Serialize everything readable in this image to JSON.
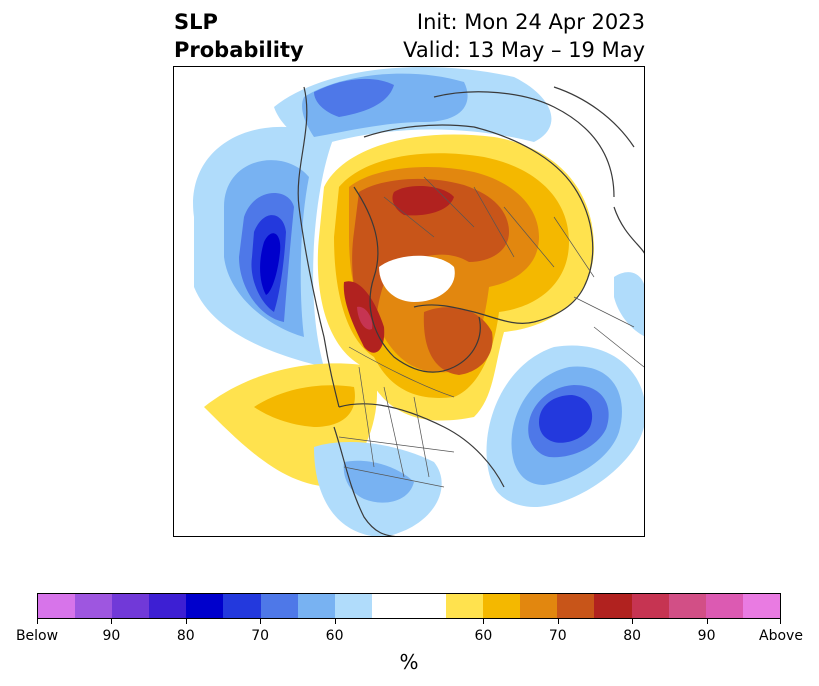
{
  "title": {
    "left_line1": "SLP",
    "left_line2": "Probability",
    "right_line1": "Init: Mon 24 Apr 2023",
    "right_line2": "Valid: 13 May – 19 May"
  },
  "map": {
    "projection": "north-polar-stereographic",
    "region": "Northern Hemisphere",
    "features": [
      "coastlines",
      "country-borders",
      "state-province-borders"
    ],
    "anomalies": [
      {
        "name": "above-north-pole-eurasia",
        "category": "Above",
        "peak_percent": 80
      },
      {
        "name": "above-alaska-canada",
        "category": "Above",
        "peak_percent": 85
      },
      {
        "name": "above-east-pacific",
        "category": "Above",
        "peak_percent": 65
      },
      {
        "name": "below-north-pacific",
        "category": "Below",
        "peak_percent": 75
      },
      {
        "name": "below-north-atlantic",
        "category": "Below",
        "peak_percent": 75
      },
      {
        "name": "below-northern-asia",
        "category": "Below",
        "peak_percent": 65
      },
      {
        "name": "below-southern-us",
        "category": "Below",
        "peak_percent": 55
      }
    ]
  },
  "colorbar": {
    "colors": [
      "#d774ea",
      "#9e56e0",
      "#7139d8",
      "#3d1fd3",
      "#0000cc",
      "#2339dd",
      "#4e78e8",
      "#78b2f2",
      "#b0dcfb",
      "#ffffff",
      "#ffffff",
      "#ffe24e",
      "#f4b800",
      "#e2870f",
      "#c85519",
      "#b1221f",
      "#c63452",
      "#d24f86",
      "#dc5ab2",
      "#e97be2"
    ],
    "tick_labels": [
      "Below",
      "90",
      "80",
      "70",
      "60",
      "60",
      "70",
      "80",
      "90",
      "Above"
    ],
    "unit": "%"
  }
}
